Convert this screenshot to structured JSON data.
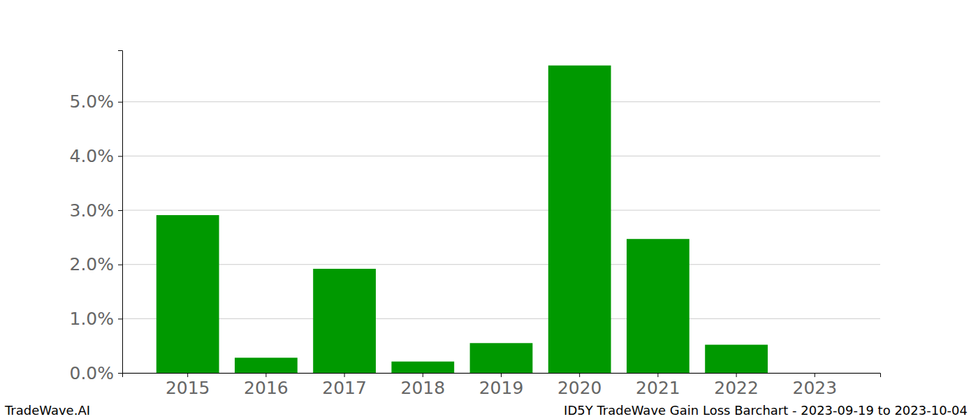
{
  "chart_data": {
    "type": "bar",
    "categories": [
      "2015",
      "2016",
      "2017",
      "2018",
      "2019",
      "2020",
      "2021",
      "2022",
      "2023"
    ],
    "values": [
      2.91,
      0.28,
      1.92,
      0.21,
      0.55,
      5.67,
      2.47,
      0.52,
      0
    ],
    "color": "#009900",
    "ylim": [
      0,
      5.95
    ],
    "yticks": [
      {
        "value": 0,
        "label": "0.0%"
      },
      {
        "value": 1,
        "label": "1.0%"
      },
      {
        "value": 2,
        "label": "2.0%"
      },
      {
        "value": 3,
        "label": "3.0%"
      },
      {
        "value": 4,
        "label": "4.0%"
      },
      {
        "value": 5,
        "label": "5.0%"
      }
    ],
    "grid": true,
    "annotations": [
      "TradeWave.AI",
      "ID5Y TradeWave Gain Loss Barchart - 2023-09-19 to 2023-10-04"
    ]
  }
}
